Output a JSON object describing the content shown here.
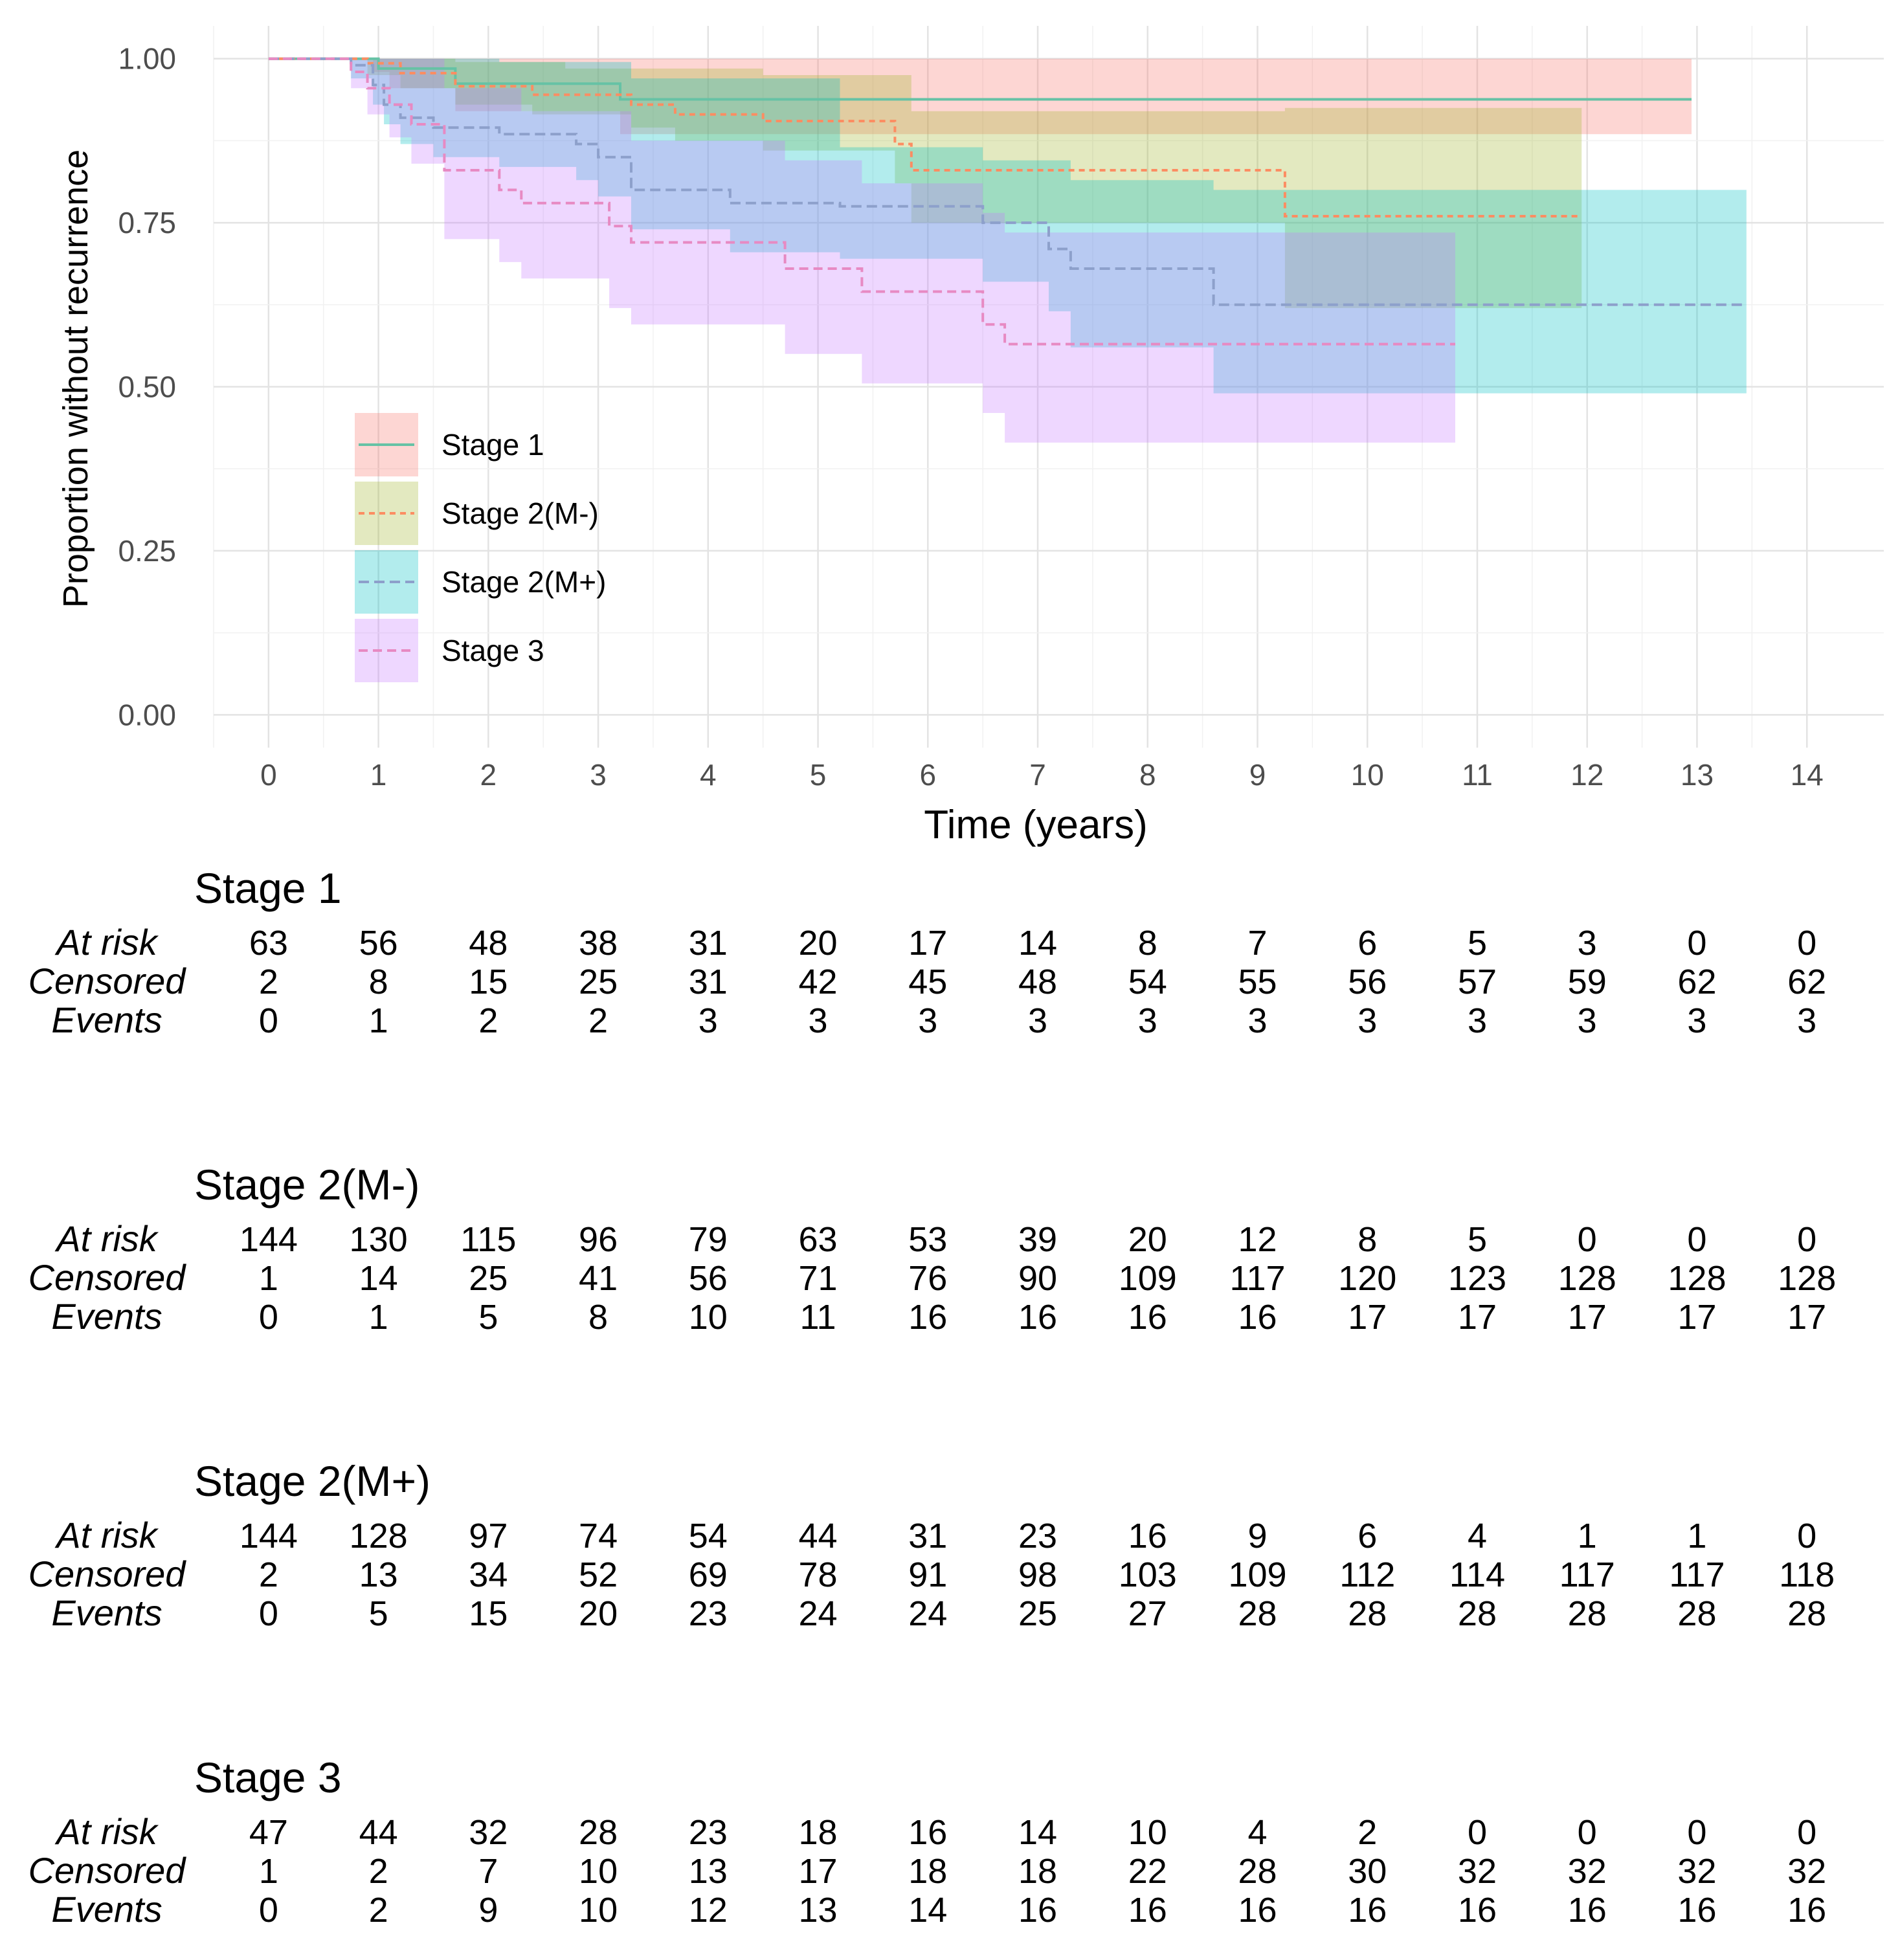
{
  "chart_data": {
    "type": "km_survival",
    "xlabel": "Time (years)",
    "ylabel": "Proportion without recurrence",
    "xlim": [
      -0.5,
      14.7
    ],
    "ylim": [
      -0.05,
      1.05
    ],
    "x_ticks": [
      "0",
      "1",
      "2",
      "3",
      "4",
      "5",
      "6",
      "7",
      "8",
      "9",
      "10",
      "11",
      "12",
      "13",
      "14"
    ],
    "y_ticks": [
      "0.00",
      "0.25",
      "0.50",
      "0.75",
      "1.00"
    ],
    "legend_position": "inside-left",
    "grid": true,
    "series": [
      {
        "name": "Stage 1",
        "line_color": "#66c2a5",
        "band_color": "#f8766d",
        "dash": "",
        "steps": [
          [
            0,
            1.0
          ],
          [
            1.0,
            0.985
          ],
          [
            1.7,
            0.962
          ],
          [
            3.2,
            0.938
          ],
          [
            12.95,
            0.938
          ]
        ],
        "lower": [
          [
            0,
            1.0
          ],
          [
            0.95,
            0.98
          ],
          [
            1.1,
            0.955
          ],
          [
            1.7,
            0.92
          ],
          [
            3.2,
            0.885
          ],
          [
            12.95,
            0.885
          ]
        ],
        "upper": [
          [
            0,
            1.0
          ],
          [
            12.95,
            1.0
          ]
        ]
      },
      {
        "name": "Stage 2(M-)",
        "line_color": "#fc8d62",
        "band_color": "#a3b52f",
        "dash": "9,7",
        "steps": [
          [
            0,
            1.0
          ],
          [
            0.9,
            0.993
          ],
          [
            1.2,
            0.978
          ],
          [
            1.7,
            0.958
          ],
          [
            2.4,
            0.945
          ],
          [
            3.3,
            0.93
          ],
          [
            3.7,
            0.915
          ],
          [
            4.5,
            0.905
          ],
          [
            5.7,
            0.87
          ],
          [
            5.85,
            0.83
          ],
          [
            9.25,
            0.76
          ],
          [
            11.95,
            0.76
          ]
        ],
        "lower": [
          [
            0,
            1.0
          ],
          [
            0.9,
            0.975
          ],
          [
            1.2,
            0.955
          ],
          [
            1.7,
            0.93
          ],
          [
            2.4,
            0.915
          ],
          [
            3.3,
            0.895
          ],
          [
            3.7,
            0.875
          ],
          [
            4.5,
            0.86
          ],
          [
            5.7,
            0.81
          ],
          [
            5.85,
            0.75
          ],
          [
            9.25,
            0.62
          ],
          [
            11.95,
            0.62
          ]
        ],
        "upper": [
          [
            0,
            1.0
          ],
          [
            1.7,
            0.995
          ],
          [
            2.7,
            0.985
          ],
          [
            4.5,
            0.975
          ],
          [
            5.85,
            0.92
          ],
          [
            9.25,
            0.925
          ],
          [
            11.95,
            0.925
          ]
        ]
      },
      {
        "name": "Stage 2(M+)",
        "line_color": "#8da0cb",
        "band_color": "#00bfc4",
        "dash": "16,8",
        "steps": [
          [
            0,
            1.0
          ],
          [
            0.75,
            0.99
          ],
          [
            0.95,
            0.96
          ],
          [
            1.05,
            0.93
          ],
          [
            1.2,
            0.91
          ],
          [
            1.5,
            0.895
          ],
          [
            2.1,
            0.885
          ],
          [
            2.8,
            0.87
          ],
          [
            3.0,
            0.85
          ],
          [
            3.3,
            0.8
          ],
          [
            4.2,
            0.78
          ],
          [
            5.2,
            0.775
          ],
          [
            6.5,
            0.75
          ],
          [
            7.1,
            0.71
          ],
          [
            7.3,
            0.68
          ],
          [
            8.6,
            0.625
          ],
          [
            13.45,
            0.625
          ]
        ],
        "lower": [
          [
            0,
            1.0
          ],
          [
            0.75,
            0.97
          ],
          [
            0.95,
            0.93
          ],
          [
            1.05,
            0.9
          ],
          [
            1.2,
            0.87
          ],
          [
            1.5,
            0.85
          ],
          [
            2.1,
            0.835
          ],
          [
            2.8,
            0.815
          ],
          [
            3.0,
            0.79
          ],
          [
            3.3,
            0.74
          ],
          [
            4.2,
            0.705
          ],
          [
            5.2,
            0.695
          ],
          [
            6.5,
            0.66
          ],
          [
            7.1,
            0.615
          ],
          [
            7.3,
            0.56
          ],
          [
            8.6,
            0.49
          ],
          [
            13.45,
            0.49
          ]
        ],
        "upper": [
          [
            0,
            1.0
          ],
          [
            2.1,
            0.995
          ],
          [
            3.3,
            0.97
          ],
          [
            5.2,
            0.865
          ],
          [
            6.5,
            0.845
          ],
          [
            7.3,
            0.815
          ],
          [
            8.6,
            0.8
          ],
          [
            13.45,
            0.8
          ]
        ]
      },
      {
        "name": "Stage 3",
        "line_color": "#e78ac3",
        "band_color": "#c77cff",
        "dash": "14,8",
        "steps": [
          [
            0,
            1.0
          ],
          [
            0.75,
            0.98
          ],
          [
            0.9,
            0.955
          ],
          [
            1.1,
            0.93
          ],
          [
            1.3,
            0.9
          ],
          [
            1.6,
            0.83
          ],
          [
            2.1,
            0.8
          ],
          [
            2.3,
            0.78
          ],
          [
            3.1,
            0.745
          ],
          [
            3.3,
            0.72
          ],
          [
            4.7,
            0.68
          ],
          [
            5.4,
            0.645
          ],
          [
            6.5,
            0.595
          ],
          [
            6.7,
            0.565
          ],
          [
            10.8,
            0.565
          ]
        ],
        "lower": [
          [
            0,
            1.0
          ],
          [
            0.75,
            0.955
          ],
          [
            0.9,
            0.915
          ],
          [
            1.1,
            0.88
          ],
          [
            1.3,
            0.84
          ],
          [
            1.6,
            0.725
          ],
          [
            2.1,
            0.69
          ],
          [
            2.3,
            0.665
          ],
          [
            3.1,
            0.62
          ],
          [
            3.3,
            0.595
          ],
          [
            4.7,
            0.55
          ],
          [
            5.4,
            0.505
          ],
          [
            6.5,
            0.46
          ],
          [
            6.7,
            0.415
          ],
          [
            10.8,
            0.415
          ]
        ],
        "upper": [
          [
            0,
            1.0
          ],
          [
            1.6,
            0.955
          ],
          [
            2.3,
            0.92
          ],
          [
            3.3,
            0.875
          ],
          [
            4.7,
            0.845
          ],
          [
            5.4,
            0.81
          ],
          [
            6.5,
            0.765
          ],
          [
            6.7,
            0.735
          ],
          [
            10.8,
            0.735
          ]
        ]
      }
    ],
    "risk_table": {
      "row_labels": [
        "At risk",
        "Censored",
        "Events"
      ],
      "times": [
        "0",
        "1",
        "2",
        "3",
        "4",
        "5",
        "6",
        "7",
        "8",
        "9",
        "10",
        "11",
        "12",
        "13",
        "14"
      ],
      "groups": [
        {
          "name": "Stage 1",
          "at_risk": [
            "63",
            "56",
            "48",
            "38",
            "31",
            "20",
            "17",
            "14",
            "8",
            "7",
            "6",
            "5",
            "3",
            "0",
            "0"
          ],
          "censored": [
            "2",
            "8",
            "15",
            "25",
            "31",
            "42",
            "45",
            "48",
            "54",
            "55",
            "56",
            "57",
            "59",
            "62",
            "62"
          ],
          "events": [
            "0",
            "1",
            "2",
            "2",
            "3",
            "3",
            "3",
            "3",
            "3",
            "3",
            "3",
            "3",
            "3",
            "3",
            "3"
          ]
        },
        {
          "name": "Stage 2(M-)",
          "at_risk": [
            "144",
            "130",
            "115",
            "96",
            "79",
            "63",
            "53",
            "39",
            "20",
            "12",
            "8",
            "5",
            "0",
            "0",
            "0"
          ],
          "censored": [
            "1",
            "14",
            "25",
            "41",
            "56",
            "71",
            "76",
            "90",
            "109",
            "117",
            "120",
            "123",
            "128",
            "128",
            "128"
          ],
          "events": [
            "0",
            "1",
            "5",
            "8",
            "10",
            "11",
            "16",
            "16",
            "16",
            "16",
            "17",
            "17",
            "17",
            "17",
            "17"
          ]
        },
        {
          "name": "Stage 2(M+)",
          "at_risk": [
            "144",
            "128",
            "97",
            "74",
            "54",
            "44",
            "31",
            "23",
            "16",
            "9",
            "6",
            "4",
            "1",
            "1",
            "0"
          ],
          "censored": [
            "2",
            "13",
            "34",
            "52",
            "69",
            "78",
            "91",
            "98",
            "103",
            "109",
            "112",
            "114",
            "117",
            "117",
            "118"
          ],
          "events": [
            "0",
            "5",
            "15",
            "20",
            "23",
            "24",
            "24",
            "25",
            "27",
            "28",
            "28",
            "28",
            "28",
            "28",
            "28"
          ]
        },
        {
          "name": "Stage 3",
          "at_risk": [
            "47",
            "44",
            "32",
            "28",
            "23",
            "18",
            "16",
            "14",
            "10",
            "4",
            "2",
            "0",
            "0",
            "0",
            "0"
          ],
          "censored": [
            "1",
            "2",
            "7",
            "10",
            "13",
            "17",
            "18",
            "18",
            "22",
            "28",
            "30",
            "32",
            "32",
            "32",
            "32"
          ],
          "events": [
            "0",
            "2",
            "9",
            "10",
            "12",
            "13",
            "14",
            "16",
            "16",
            "16",
            "16",
            "16",
            "16",
            "16",
            "16"
          ]
        }
      ]
    }
  }
}
